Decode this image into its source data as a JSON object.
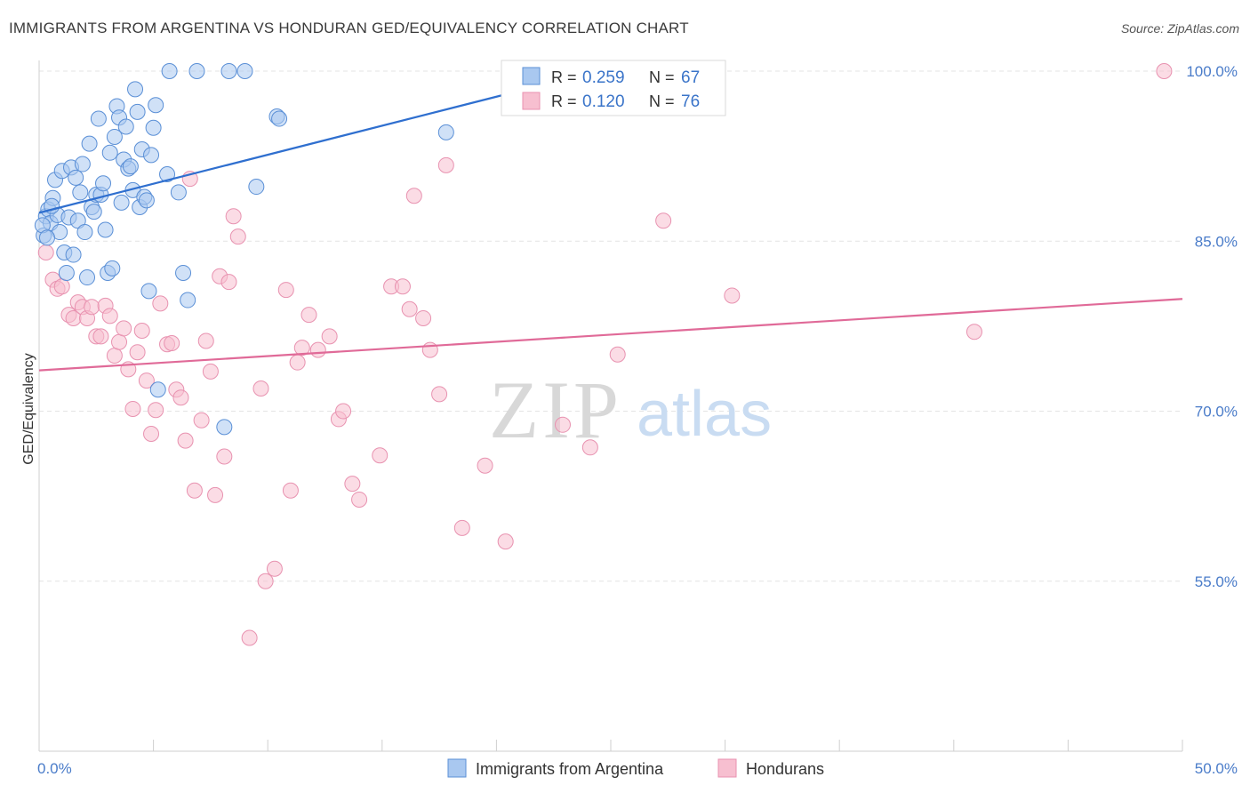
{
  "header": {
    "title": "IMMIGRANTS FROM ARGENTINA VS HONDURAN GED/EQUIVALENCY CORRELATION CHART",
    "source": "Source: ZipAtlas.com"
  },
  "watermark": {
    "zip": "ZIP",
    "atlas": "atlas"
  },
  "legend_top": {
    "r_label": "R =",
    "n_label": "N =",
    "rows": [
      {
        "r": "0.259",
        "n": "67"
      },
      {
        "r": "0.120",
        "n": "76"
      }
    ]
  },
  "colors": {
    "blue_fill": "#a9c8f0",
    "blue_stroke": "#5a8fd6",
    "blue_line": "#2f6fcf",
    "pink_fill": "#f7bfd0",
    "pink_stroke": "#e892b0",
    "pink_line": "#e06a98",
    "tick_label": "#4a7cc9"
  },
  "chart_data": {
    "type": "scatter",
    "title": "IMMIGRANTS FROM ARGENTINA VS HONDURAN GED/EQUIVALENCY CORRELATION CHART",
    "xlabel": "",
    "ylabel": "GED/Equivalency",
    "xlim": [
      0,
      50
    ],
    "ylim": [
      40,
      102
    ],
    "x_tick_labels": [
      "0.0%",
      "50.0%"
    ],
    "y_ticks": [
      55,
      70,
      85,
      100
    ],
    "y_tick_labels": [
      "55.0%",
      "70.0%",
      "85.0%",
      "100.0%"
    ],
    "grid": true,
    "legend": "top-center",
    "series": [
      {
        "name": "Immigrants from Argentina",
        "r": 0.259,
        "n": 67,
        "trend": [
          [
            0.0,
            87.5
          ],
          [
            20.5,
            98.0
          ]
        ],
        "points": [
          [
            0.2,
            85.5
          ],
          [
            0.3,
            87.2
          ],
          [
            0.4,
            87.8
          ],
          [
            0.5,
            86.6
          ],
          [
            0.6,
            88.8
          ],
          [
            0.7,
            90.4
          ],
          [
            0.8,
            87.3
          ],
          [
            0.9,
            85.8
          ],
          [
            1.0,
            91.2
          ],
          [
            1.1,
            84.0
          ],
          [
            1.2,
            82.2
          ],
          [
            1.3,
            87.1
          ],
          [
            1.4,
            91.5
          ],
          [
            1.5,
            83.8
          ],
          [
            1.6,
            90.6
          ],
          [
            1.7,
            86.8
          ],
          [
            1.8,
            89.3
          ],
          [
            1.9,
            91.8
          ],
          [
            2.0,
            85.8
          ],
          [
            2.1,
            81.8
          ],
          [
            2.2,
            93.6
          ],
          [
            2.3,
            88.0
          ],
          [
            2.4,
            87.6
          ],
          [
            2.5,
            89.1
          ],
          [
            2.6,
            95.8
          ],
          [
            2.7,
            89.1
          ],
          [
            2.8,
            90.1
          ],
          [
            2.9,
            86.0
          ],
          [
            3.0,
            82.2
          ],
          [
            3.1,
            92.8
          ],
          [
            3.2,
            82.6
          ],
          [
            3.3,
            94.2
          ],
          [
            3.4,
            96.9
          ],
          [
            3.5,
            95.9
          ],
          [
            3.6,
            88.4
          ],
          [
            3.7,
            92.2
          ],
          [
            3.8,
            95.1
          ],
          [
            3.9,
            91.4
          ],
          [
            4.0,
            91.6
          ],
          [
            4.1,
            89.5
          ],
          [
            4.2,
            98.4
          ],
          [
            4.3,
            96.4
          ],
          [
            4.4,
            88.0
          ],
          [
            4.5,
            93.1
          ],
          [
            4.6,
            88.9
          ],
          [
            4.7,
            88.6
          ],
          [
            4.8,
            80.6
          ],
          [
            4.9,
            92.6
          ],
          [
            5.0,
            95.0
          ],
          [
            5.1,
            97.0
          ],
          [
            5.2,
            71.9
          ],
          [
            5.6,
            90.9
          ],
          [
            6.1,
            89.3
          ],
          [
            6.3,
            82.2
          ],
          [
            6.5,
            79.8
          ],
          [
            5.7,
            100.0
          ],
          [
            6.9,
            100.0
          ],
          [
            8.3,
            100.0
          ],
          [
            9.0,
            100.0
          ],
          [
            8.1,
            68.6
          ],
          [
            9.5,
            89.8
          ],
          [
            10.4,
            96.0
          ],
          [
            10.5,
            95.8
          ],
          [
            17.8,
            94.6
          ],
          [
            0.15,
            86.4
          ],
          [
            0.35,
            85.3
          ],
          [
            0.55,
            88.1
          ]
        ]
      },
      {
        "name": "Hondurans",
        "r": 0.12,
        "n": 76,
        "trend": [
          [
            0.0,
            73.6
          ],
          [
            50.0,
            79.9
          ]
        ],
        "points": [
          [
            0.3,
            84.0
          ],
          [
            0.6,
            81.6
          ],
          [
            0.8,
            80.8
          ],
          [
            1.0,
            81.0
          ],
          [
            1.3,
            78.5
          ],
          [
            1.5,
            78.2
          ],
          [
            1.7,
            79.6
          ],
          [
            1.9,
            79.2
          ],
          [
            2.1,
            78.2
          ],
          [
            2.3,
            79.2
          ],
          [
            2.5,
            76.6
          ],
          [
            2.7,
            76.6
          ],
          [
            2.9,
            79.3
          ],
          [
            3.1,
            78.4
          ],
          [
            3.3,
            74.9
          ],
          [
            3.5,
            76.1
          ],
          [
            3.7,
            77.3
          ],
          [
            3.9,
            73.7
          ],
          [
            4.1,
            70.2
          ],
          [
            4.3,
            75.2
          ],
          [
            4.5,
            77.1
          ],
          [
            4.7,
            72.7
          ],
          [
            4.9,
            68.0
          ],
          [
            5.1,
            70.1
          ],
          [
            5.3,
            79.5
          ],
          [
            5.6,
            75.9
          ],
          [
            5.8,
            76.0
          ],
          [
            6.0,
            71.9
          ],
          [
            6.2,
            71.2
          ],
          [
            6.4,
            67.4
          ],
          [
            6.6,
            90.5
          ],
          [
            6.8,
            63.0
          ],
          [
            7.1,
            69.2
          ],
          [
            7.3,
            76.2
          ],
          [
            7.5,
            73.5
          ],
          [
            7.7,
            62.6
          ],
          [
            7.9,
            81.9
          ],
          [
            8.1,
            66.0
          ],
          [
            8.3,
            81.4
          ],
          [
            8.5,
            87.2
          ],
          [
            8.7,
            85.4
          ],
          [
            9.2,
            50.0
          ],
          [
            9.7,
            72.0
          ],
          [
            9.9,
            55.0
          ],
          [
            10.3,
            56.1
          ],
          [
            10.8,
            80.7
          ],
          [
            11.0,
            63.0
          ],
          [
            11.3,
            74.3
          ],
          [
            11.5,
            75.6
          ],
          [
            11.8,
            78.5
          ],
          [
            12.2,
            75.4
          ],
          [
            12.7,
            76.6
          ],
          [
            13.1,
            69.3
          ],
          [
            13.3,
            70.0
          ],
          [
            13.7,
            63.6
          ],
          [
            14.0,
            62.2
          ],
          [
            14.9,
            66.1
          ],
          [
            15.4,
            81.0
          ],
          [
            15.9,
            81.0
          ],
          [
            16.2,
            79.0
          ],
          [
            16.4,
            89.0
          ],
          [
            16.8,
            78.2
          ],
          [
            17.1,
            75.4
          ],
          [
            17.5,
            71.5
          ],
          [
            17.8,
            91.7
          ],
          [
            18.5,
            59.7
          ],
          [
            19.5,
            65.2
          ],
          [
            20.4,
            58.5
          ],
          [
            22.9,
            68.8
          ],
          [
            24.1,
            66.8
          ],
          [
            25.3,
            75.0
          ],
          [
            27.3,
            86.8
          ],
          [
            30.3,
            80.2
          ],
          [
            40.9,
            77.0
          ],
          [
            49.2,
            100.0
          ],
          [
            28.4,
            100.0
          ]
        ]
      }
    ]
  },
  "bottom_legend": {
    "items": [
      {
        "label": "Immigrants from Argentina"
      },
      {
        "label": "Hondurans"
      }
    ]
  }
}
